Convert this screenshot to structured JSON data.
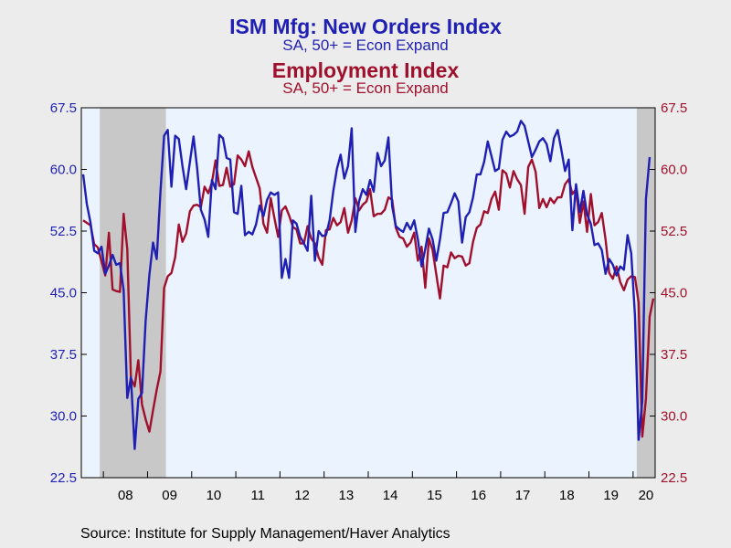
{
  "titles": {
    "title1": "ISM Mfg: New Orders Index",
    "subtitle1": "SA, 50+ = Econ Expand",
    "title2": "Employment Index",
    "subtitle2": "SA, 50+ = Econ Expand"
  },
  "source": "Source:  Institute for Supply Management/Haver Analytics",
  "colors": {
    "background": "#ececec",
    "plot_background": "#eaf3fe",
    "recession": "#c8c8c8",
    "new_orders": "#1f1fb4",
    "employment": "#a0102c"
  },
  "chart_data": {
    "type": "line",
    "x_start": "2007-07",
    "frequency": "monthly",
    "xlim": [
      "2007-07",
      "2020-07"
    ],
    "ylim": [
      22.5,
      67.5
    ],
    "y_ticks": [
      22.5,
      30.0,
      37.5,
      45.0,
      52.5,
      60.0,
      67.5
    ],
    "y_tick_labels": [
      "22.5",
      "30.0",
      "37.5",
      "45.0",
      "52.5",
      "60.0",
      "67.5"
    ],
    "x_tick_labels": [
      "08",
      "09",
      "10",
      "11",
      "12",
      "13",
      "14",
      "15",
      "16",
      "17",
      "18",
      "19",
      "20"
    ],
    "recessions": [
      [
        "2007-12",
        "2009-06"
      ],
      [
        "2020-02",
        "2020-07"
      ]
    ],
    "grid": false,
    "series": [
      {
        "name": "ISM Mfg: New Orders Index",
        "axis": "left",
        "color": "#1f1fb4",
        "values": [
          59.4,
          55.8,
          53.5,
          50.1,
          49.8,
          50.6,
          47.3,
          48.3,
          49.6,
          48.4,
          48.6,
          45.3,
          32.2,
          34.7,
          26.0,
          32.1,
          32.8,
          41.6,
          47.2,
          51.1,
          49.1,
          57.3,
          64.1,
          64.8,
          57.9,
          64.1,
          63.7,
          60.4,
          57.6,
          60.9,
          64.0,
          60.1,
          55.1,
          53.9,
          51.8,
          58.7,
          57.6,
          64.2,
          63.8,
          61.4,
          61.2,
          54.8,
          54.6,
          58.0,
          52.0,
          52.4,
          52.1,
          53.3,
          55.6,
          54.3,
          56.3,
          57.2,
          56.9,
          57.2,
          46.8,
          49.1,
          46.8,
          53.8,
          53.4,
          51.8,
          51.0,
          50.1,
          56.8,
          48.9,
          52.5,
          51.9,
          52.0,
          53.8,
          57.4,
          60.1,
          61.8,
          58.9,
          60.4,
          65.0,
          52.4,
          56.1,
          57.6,
          56.9,
          58.7,
          57.3,
          62.0,
          60.4,
          61.1,
          63.9,
          55.5,
          53.1,
          52.7,
          52.4,
          53.5,
          52.7,
          53.8,
          51.5,
          48.2,
          50.3,
          52.8,
          51.5,
          48.9,
          51.5,
          54.7,
          54.8,
          55.9,
          57.1,
          56.1,
          51.1,
          54.2,
          54.8,
          56.6,
          59.4,
          59.4,
          60.9,
          63.4,
          61.6,
          59.8,
          60.1,
          63.6,
          64.6,
          64.0,
          64.2,
          64.6,
          65.9,
          65.3,
          63.4,
          61.5,
          62.4,
          63.4,
          63.8,
          63.1,
          61.0,
          63.8,
          64.8,
          62.4,
          59.8,
          61.2,
          52.6,
          58.2,
          54.8,
          57.4,
          54.5,
          53.4,
          50.8,
          51.0,
          50.2,
          47.3,
          49.1,
          48.4,
          47.1,
          48.2,
          47.8,
          52.0,
          49.8,
          42.2,
          27.1,
          31.8,
          56.4,
          61.5
        ]
      },
      {
        "name": "Employment Index",
        "axis": "right",
        "color": "#a0102c",
        "values": [
          53.8,
          53.5,
          53.2,
          50.9,
          50.5,
          48.8,
          47.1,
          52.3,
          45.4,
          45.2,
          45.1,
          54.6,
          50.3,
          34.6,
          33.6,
          36.8,
          31.4,
          29.6,
          28.1,
          30.7,
          33.2,
          35.4,
          45.6,
          47.0,
          47.4,
          49.3,
          53.3,
          51.2,
          52.2,
          54.9,
          55.6,
          55.7,
          55.4,
          57.9,
          57.1,
          58.4,
          61.1,
          58.0,
          58.1,
          60.2,
          57.9,
          58.2,
          61.7,
          61.2,
          60.4,
          62.2,
          60.3,
          59.0,
          57.7,
          53.4,
          52.3,
          56.5,
          54.1,
          51.8,
          55.0,
          55.5,
          54.4,
          53.0,
          52.7,
          51.0,
          51.0,
          53.1,
          51.6,
          51.0,
          49.3,
          48.4,
          52.6,
          52.7,
          54.1,
          53.2,
          53.6,
          55.3,
          52.3,
          53.8,
          56.5,
          55.0,
          55.7,
          56.1,
          57.6,
          54.3,
          54.6,
          54.6,
          55.1,
          56.6,
          56.3,
          52.9,
          51.8,
          51.6,
          50.6,
          51.1,
          52.3,
          48.9,
          50.6,
          45.6,
          51.6,
          50.2,
          47.2,
          44.3,
          48.3,
          48.1,
          49.9,
          49.2,
          49.5,
          49.4,
          48.3,
          48.6,
          51.2,
          52.9,
          53.3,
          54.9,
          54.7,
          56.4,
          57.3,
          55.1,
          59.9,
          59.5,
          57.8,
          59.8,
          58.8,
          58.1,
          54.6,
          60.3,
          61.2,
          59.7,
          55.3,
          56.4,
          55.4,
          56.5,
          55.9,
          56.6,
          56.6,
          58.2,
          58.8,
          57.0,
          57.6,
          53.5,
          56.1,
          52.4,
          57.0,
          53.2,
          53.6,
          54.7,
          51.5,
          47.4,
          46.7,
          48.2,
          46.3,
          45.3,
          46.6,
          47.0,
          46.9,
          43.8,
          27.5,
          32.1,
          42.1,
          44.3
        ]
      }
    ]
  }
}
